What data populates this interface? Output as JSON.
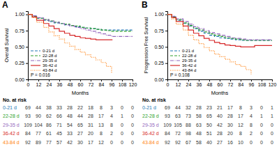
{
  "chart_data": [
    {
      "type": "step",
      "title": "A",
      "x_label": "Months",
      "y_label": "Overall Survival",
      "annotation": "P = 0.016",
      "xlim": [
        0,
        120
      ],
      "ylim": [
        0.0,
        1.05
      ],
      "xticks": [
        0,
        12,
        24,
        36,
        48,
        60,
        72,
        84,
        96,
        108,
        120
      ],
      "yticks": [
        {
          "value": 0.0,
          "label": "0.00"
        },
        {
          "value": 0.25,
          "label": "0.25"
        },
        {
          "value": 0.5,
          "label": "0.50"
        },
        {
          "value": 0.75,
          "label": "0.75"
        },
        {
          "value": 1.0,
          "label": "1.00"
        }
      ],
      "legend": "lower left",
      "series": [
        {
          "name": "0-21 d",
          "color": "#1f77b4",
          "line_style": "dashed",
          "x": [
            0,
            5,
            10,
            18,
            24,
            30,
            36,
            42,
            48,
            54,
            60,
            66,
            72,
            78,
            84,
            90,
            96,
            108,
            120
          ],
          "values": [
            1.0,
            0.97,
            0.94,
            0.91,
            0.89,
            0.87,
            0.86,
            0.84,
            0.83,
            0.81,
            0.8,
            0.79,
            0.78,
            0.77,
            0.76,
            0.76,
            0.76,
            0.76,
            0.76
          ]
        },
        {
          "name": "22-28 d",
          "color": "#2ca02c",
          "line_style": "dashed",
          "x": [
            0,
            5,
            10,
            18,
            24,
            30,
            36,
            42,
            48,
            54,
            60,
            66,
            72,
            78,
            84,
            90,
            96,
            108,
            120
          ],
          "values": [
            1.0,
            0.97,
            0.94,
            0.92,
            0.9,
            0.88,
            0.86,
            0.85,
            0.83,
            0.82,
            0.8,
            0.79,
            0.78,
            0.77,
            0.76,
            0.75,
            0.74,
            0.74,
            0.74
          ]
        },
        {
          "name": "29-35 d",
          "color": "#9467bd",
          "line_style": "dashdot",
          "x": [
            0,
            5,
            10,
            18,
            24,
            30,
            36,
            42,
            48,
            54,
            60,
            66,
            72,
            78,
            84,
            90,
            96,
            108,
            120
          ],
          "values": [
            1.0,
            0.98,
            0.95,
            0.92,
            0.9,
            0.88,
            0.86,
            0.84,
            0.82,
            0.8,
            0.78,
            0.76,
            0.74,
            0.72,
            0.7,
            0.68,
            0.66,
            0.66,
            0.66
          ]
        },
        {
          "name": "36-42 d",
          "color": "#d62728",
          "line_style": "solid",
          "x": [
            0,
            5,
            10,
            18,
            24,
            30,
            36,
            42,
            48,
            54,
            60,
            66,
            72,
            78,
            84,
            90,
            96,
            97
          ],
          "values": [
            1.0,
            0.96,
            0.91,
            0.86,
            0.82,
            0.78,
            0.74,
            0.71,
            0.68,
            0.66,
            0.64,
            0.63,
            0.62,
            0.61,
            0.61,
            0.61,
            0.61,
            0.61
          ]
        },
        {
          "name": "43-84 d",
          "color": "#ff7f0e",
          "line_style": "dotted",
          "x": [
            0,
            5,
            10,
            18,
            24,
            30,
            36,
            42,
            48,
            54,
            60,
            66,
            72,
            78,
            84,
            90,
            96
          ],
          "values": [
            1.0,
            0.95,
            0.88,
            0.8,
            0.73,
            0.67,
            0.62,
            0.56,
            0.51,
            0.46,
            0.42,
            0.38,
            0.34,
            0.3,
            0.26,
            0.2,
            0.1
          ]
        }
      ],
      "at_risk_title": "No. at risk",
      "at_risk": [
        [
          69,
          44,
          38,
          33,
          28,
          22,
          18,
          8,
          3,
          0,
          0
        ],
        [
          93,
          90,
          62,
          66,
          48,
          44,
          28,
          17,
          4,
          1,
          0
        ],
        [
          109,
          104,
          86,
          71,
          54,
          65,
          31,
          13,
          8,
          0,
          0
        ],
        [
          84,
          77,
          61,
          45,
          33,
          27,
          20,
          8,
          2,
          0,
          0
        ],
        [
          92,
          89,
          77,
          57,
          42,
          30,
          17,
          12,
          0,
          0,
          0
        ]
      ]
    },
    {
      "type": "step",
      "title": "B",
      "x_label": "Months",
      "y_label": "Progression Free Survival",
      "annotation": "P = 0.108",
      "xlim": [
        0,
        120
      ],
      "ylim": [
        0.0,
        1.05
      ],
      "xticks": [
        0,
        12,
        24,
        36,
        48,
        60,
        72,
        84,
        96,
        108,
        120
      ],
      "yticks": [
        {
          "value": 0.0,
          "label": "0.00"
        },
        {
          "value": 0.25,
          "label": "0.25"
        },
        {
          "value": 0.5,
          "label": "0.50"
        },
        {
          "value": 0.75,
          "label": "0.75"
        },
        {
          "value": 1.0,
          "label": "1.00"
        }
      ],
      "legend": "lower left",
      "series": [
        {
          "name": "0-21 d",
          "color": "#1f77b4",
          "line_style": "dashed",
          "x": [
            0,
            5,
            10,
            18,
            24,
            30,
            36,
            42,
            48,
            54,
            60,
            66,
            72,
            78,
            84,
            90,
            96,
            108,
            120
          ],
          "values": [
            1.0,
            0.96,
            0.91,
            0.86,
            0.82,
            0.78,
            0.74,
            0.71,
            0.68,
            0.66,
            0.64,
            0.63,
            0.62,
            0.61,
            0.6,
            0.6,
            0.6,
            0.6,
            0.6
          ]
        },
        {
          "name": "22-28 d",
          "color": "#2ca02c",
          "line_style": "dashed",
          "x": [
            0,
            5,
            10,
            18,
            24,
            30,
            36,
            42,
            48,
            54,
            60,
            66,
            72,
            78,
            84,
            90,
            96,
            108,
            120
          ],
          "values": [
            1.0,
            0.96,
            0.92,
            0.87,
            0.83,
            0.79,
            0.76,
            0.73,
            0.7,
            0.68,
            0.66,
            0.64,
            0.63,
            0.62,
            0.61,
            0.6,
            0.6,
            0.6,
            0.6
          ]
        },
        {
          "name": "29-35 d",
          "color": "#9467bd",
          "line_style": "dashdot",
          "x": [
            0,
            5,
            10,
            18,
            24,
            30,
            36,
            42,
            48,
            54,
            60,
            66,
            72,
            78,
            84,
            90,
            96,
            108,
            120
          ],
          "values": [
            1.0,
            0.97,
            0.93,
            0.89,
            0.85,
            0.81,
            0.78,
            0.75,
            0.72,
            0.7,
            0.68,
            0.66,
            0.64,
            0.63,
            0.62,
            0.61,
            0.61,
            0.61,
            0.61
          ]
        },
        {
          "name": "36-42 d",
          "color": "#d62728",
          "line_style": "solid",
          "x": [
            0,
            5,
            10,
            18,
            24,
            30,
            36,
            42,
            48,
            54,
            60,
            66,
            72,
            78,
            84,
            90,
            96,
            100,
            108,
            120
          ],
          "values": [
            1.0,
            0.95,
            0.89,
            0.82,
            0.76,
            0.71,
            0.67,
            0.63,
            0.6,
            0.57,
            0.55,
            0.53,
            0.52,
            0.51,
            0.5,
            0.5,
            0.5,
            0.52,
            0.52,
            0.52
          ]
        },
        {
          "name": "43-84 d",
          "color": "#ff7f0e",
          "line_style": "dotted",
          "x": [
            0,
            5,
            10,
            18,
            24,
            30,
            36,
            42,
            48,
            54,
            60,
            66,
            72,
            78,
            84,
            90,
            96
          ],
          "values": [
            1.0,
            0.93,
            0.85,
            0.76,
            0.68,
            0.61,
            0.55,
            0.49,
            0.44,
            0.39,
            0.35,
            0.31,
            0.27,
            0.23,
            0.2,
            0.15,
            0.08
          ]
        }
      ],
      "at_risk_title": "No. at risk",
      "at_risk": [
        [
          69,
          44,
          32,
          28,
          23,
          21,
          17,
          8,
          3,
          0,
          1
        ],
        [
          93,
          63,
          73,
          58,
          65,
          40,
          28,
          17,
          4,
          1,
          1
        ],
        [
          109,
          105,
          88,
          63,
          50,
          42,
          30,
          12,
          8,
          0,
          0
        ],
        [
          84,
          72,
          98,
          48,
          51,
          28,
          20,
          8,
          2,
          0,
          0
        ],
        [
          92,
          92,
          67,
          58,
          40,
          27,
          16,
          10,
          0,
          0,
          0
        ]
      ]
    }
  ]
}
